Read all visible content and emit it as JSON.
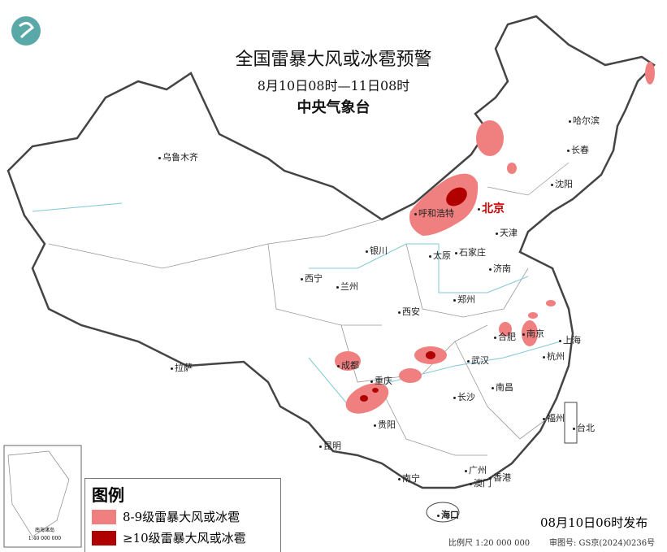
{
  "header": {
    "title": "全国雷暴大风或冰雹预警",
    "period": "8月10日08时—11日08时",
    "issuer": "中央气象台"
  },
  "cities": [
    "乌鲁木齐",
    "哈尔滨",
    "长春",
    "沈阳",
    "北京",
    "天津",
    "呼和浩特",
    "石家庄",
    "太原",
    "银川",
    "济南",
    "西宁",
    "兰州",
    "郑州",
    "西安",
    "合肥",
    "南京",
    "上海",
    "杭州",
    "武汉",
    "成都",
    "重庆",
    "拉萨",
    "长沙",
    "南昌",
    "福州",
    "台北",
    "贵阳",
    "昆明",
    "南宁",
    "广州",
    "澳门",
    "香港",
    "海口"
  ],
  "legend": {
    "title": "图例",
    "items": [
      {
        "label": "8-9级雷暴大风或冰雹",
        "color": "#f08080"
      },
      {
        "label": "≥10级雷暴大风或冰雹",
        "color": "#b00000"
      }
    ]
  },
  "footer": {
    "issued": "08月10日06时发布",
    "scale": "比例尺 1:20 000 000",
    "review_no": "审图号: GS京(2024)0236号"
  },
  "inset": {
    "label": "南海诸岛",
    "scale": "1:40 000 000"
  },
  "colors": {
    "moderate": "#f08080",
    "severe": "#b00000",
    "border": "#555555",
    "river": "#7fc8d8"
  }
}
